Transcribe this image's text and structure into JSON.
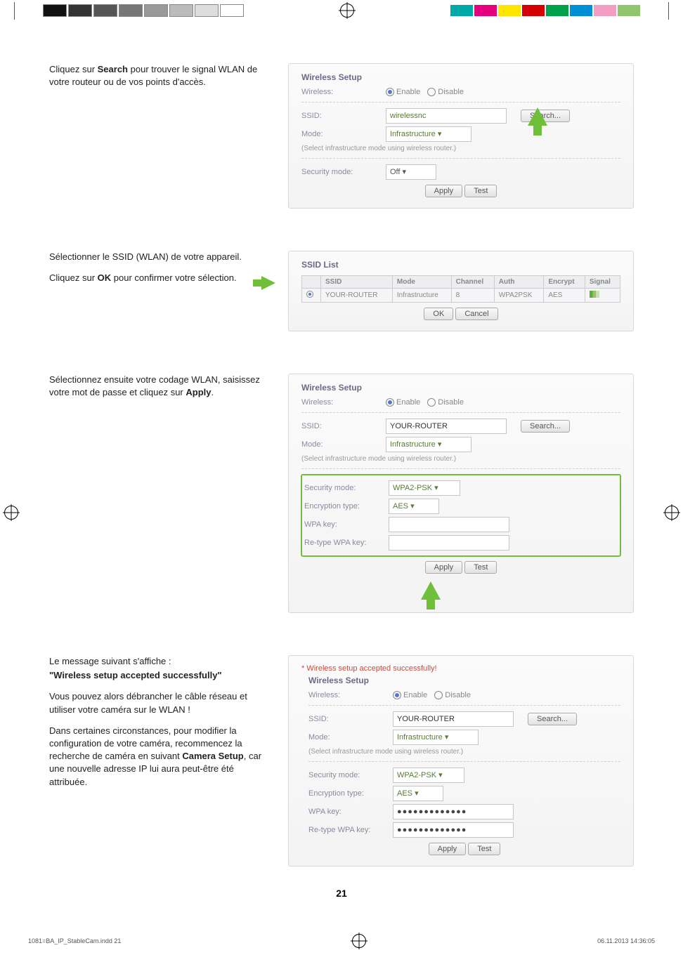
{
  "printerColors": {
    "left": [
      "#111111",
      "#333333",
      "#555555",
      "#777777",
      "#999999",
      "#bbbbbb",
      "#dddddd",
      "#ffffff"
    ],
    "right": [
      "#00a8a8",
      "#e6007e",
      "#ffe600",
      "#d40000",
      "#00a14b",
      "#008fd5",
      "#f29ec4",
      "#92c56e"
    ]
  },
  "sections": {
    "s1": {
      "text1a": "Cliquez sur ",
      "text1b": "Search",
      "text1c": " pour trouver le signal WLAN de votre routeur ou de vos points d'accès.",
      "panelTitle": "Wireless Setup",
      "wirelessLabel": "Wireless:",
      "enable": "Enable",
      "disable": "Disable",
      "ssidLabel": "SSID:",
      "ssidValue": "wirelessnc",
      "searchBtn": "Search...",
      "modeLabel": "Mode:",
      "modeValue": "Infrastructure  ▾",
      "hint": "(Select infrastructure mode using wireless router.)",
      "secLabel": "Security mode:",
      "secValue": "Off         ▾",
      "apply": "Apply",
      "test": "Test"
    },
    "s2": {
      "text1": "Sélectionner le SSID (WLAN) de votre appareil.",
      "text2a": "Cliquez sur ",
      "text2b": "OK",
      "text2c": " pour confirmer votre sélection.",
      "panelTitle": "SSID List",
      "cols": [
        "SSID",
        "Mode",
        "Channel",
        "Auth",
        "Encrypt",
        "Signal"
      ],
      "row": {
        "ssid": "YOUR-ROUTER",
        "mode": "Infrastructure",
        "channel": "8",
        "auth": "WPA2PSK",
        "encrypt": "AES"
      },
      "ok": "OK",
      "cancel": "Cancel"
    },
    "s3": {
      "text1a": "Sélectionnez ensuite votre codage WLAN, saisissez votre mot de passe et cliquez sur ",
      "text1b": "Apply",
      "text1c": ".",
      "panelTitle": "Wireless Setup",
      "ssidValue": "YOUR-ROUTER",
      "searchBtn": "Search...",
      "secValue": "WPA2-PSK  ▾",
      "encLabel": "Encryption type:",
      "encValue": "AES  ▾",
      "wpaLabel": "WPA key:",
      "reLabel": "Re-type WPA key:"
    },
    "s4": {
      "text1": "Le message suivant s'affiche :",
      "text2": "\"Wireless setup accepted successfully\"",
      "text3": "Vous pouvez alors débrancher le câble réseau et utiliser votre caméra sur le WLAN !",
      "text4a": "Dans certaines circonstances, pour modifier la configuration de votre caméra, recommencez la recherche de caméra en suivant ",
      "text4b": "Camera Setup",
      "text4c": ", car une nouvelle adresse IP lui aura peut-être été attribuée.",
      "success": "* Wireless setup accepted successfully!",
      "panelTitle": "Wireless Setup",
      "ssidValue": "YOUR-ROUTER",
      "dots": "●●●●●●●●●●●●●"
    }
  },
  "common": {
    "wireless": "Wireless:",
    "enable": "Enable",
    "disable": "Disable",
    "ssid": "SSID:",
    "mode": "Mode:",
    "modeVal": "Infrastructure  ▾",
    "hint": "(Select infrastructure mode using wireless router.)",
    "sec": "Security mode:",
    "enc": "Encryption type:",
    "wpa": "WPA key:",
    "rewpa": "Re-type WPA key:",
    "apply": "Apply",
    "test": "Test",
    "search": "Search..."
  },
  "pageNum": "21",
  "footer": {
    "file": "1081=BA_IP_StableCam.indd   21",
    "date": "06.11.2013   14:36:05"
  }
}
